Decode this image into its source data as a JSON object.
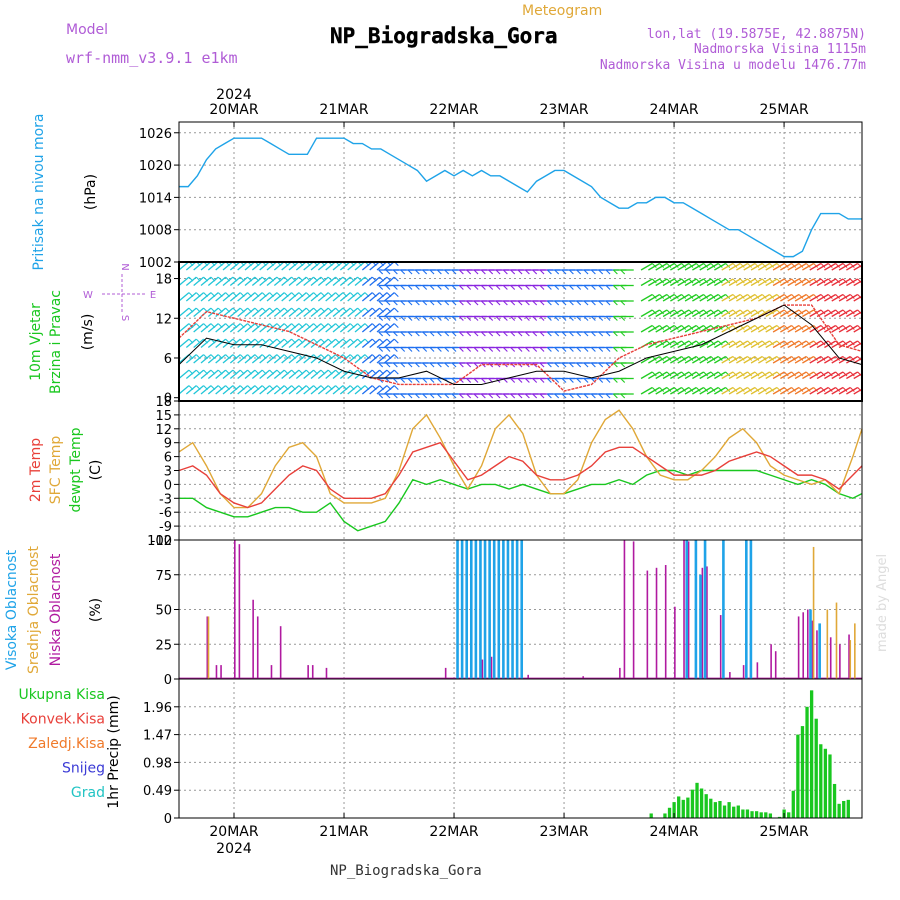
{
  "header": {
    "model_label": "Model",
    "model_name": "wrf-nmm_v3.9.1 e1km",
    "meteogram_label": "Meteogram",
    "station": "NP_Biogradska_Gora",
    "lonlat": "lon,lat (19.5875E, 42.8875N)",
    "elevation": "Nadmorska Visina 1115m",
    "model_elevation": "Nadmorska Visina u modelu 1476.77m",
    "footer_station": "NP_Biogradska_Gora",
    "credit": "made by Angel"
  },
  "colors": {
    "pressure": "#1fa3e8",
    "t2m": "#e8403a",
    "sfc": "#e0a838",
    "dewpt": "#19c71f",
    "high_cloud": "#1fa3e8",
    "mid_cloud": "#e0a838",
    "low_cloud": "#b01aa0",
    "total_precip": "#19c71f",
    "convective": "#e8403a",
    "freezing": "#f07a2a",
    "snow": "#3b3bd6",
    "graupel": "#22c4c4"
  },
  "chart_data": {
    "type": "meteogram",
    "time_axis": {
      "year": "2024",
      "day_labels": [
        "20MAR",
        "21MAR",
        "22MAR",
        "23MAR",
        "24MAR",
        "25MAR"
      ],
      "day_noon_hours": [
        12,
        36,
        60,
        84,
        108,
        132
      ],
      "range_hours": [
        0,
        149
      ]
    },
    "panels": [
      {
        "id": "pressure",
        "type": "line",
        "ylabel_name": "Pritisak na nivou mora",
        "ylabel_unit": "(hPa)",
        "ylim": [
          1002,
          1028
        ],
        "yticks": [
          1002,
          1008,
          1014,
          1020,
          1026
        ],
        "x": [
          0,
          2,
          4,
          6,
          8,
          10,
          12,
          14,
          16,
          18,
          20,
          22,
          24,
          26,
          28,
          30,
          32,
          34,
          36,
          38,
          40,
          42,
          44,
          46,
          48,
          50,
          52,
          54,
          56,
          58,
          60,
          62,
          64,
          66,
          68,
          70,
          72,
          74,
          76,
          78,
          80,
          82,
          84,
          86,
          88,
          90,
          92,
          94,
          96,
          98,
          100,
          102,
          104,
          106,
          108,
          110,
          112,
          114,
          116,
          118,
          120,
          122,
          124,
          126,
          128,
          130,
          132,
          134,
          136,
          138,
          140,
          142,
          144,
          146,
          148,
          149
        ],
        "y": [
          1016,
          1016,
          1018,
          1021,
          1023,
          1024,
          1025,
          1025,
          1025,
          1025,
          1024,
          1023,
          1022,
          1022,
          1022,
          1025,
          1025,
          1025,
          1025,
          1024,
          1024,
          1023,
          1023,
          1022,
          1021,
          1020,
          1019,
          1017,
          1018,
          1019,
          1018,
          1019,
          1018,
          1019,
          1018,
          1018,
          1017,
          1016,
          1015,
          1017,
          1018,
          1019,
          1019,
          1018,
          1017,
          1016,
          1014,
          1013,
          1012,
          1012,
          1013,
          1013,
          1014,
          1014,
          1013,
          1013,
          1012,
          1011,
          1010,
          1009,
          1008,
          1008,
          1007,
          1006,
          1005,
          1004,
          1003,
          1003,
          1004,
          1008,
          1011,
          1011,
          1011,
          1010,
          1010,
          1010
        ]
      },
      {
        "id": "wind",
        "type": "line",
        "ylabel_name": "10m Vjetar",
        "ylabel_name2": "Brzina i Pravac",
        "ylabel_unit": "(m/s)",
        "direction_legend": [
          "N",
          "E",
          "S",
          "W"
        ],
        "ylim": [
          -0.5,
          20.5
        ],
        "yticks": [
          0,
          6,
          12,
          18
        ],
        "x": [
          0,
          6,
          12,
          18,
          24,
          30,
          36,
          42,
          48,
          54,
          60,
          66,
          72,
          78,
          84,
          90,
          96,
          102,
          108,
          114,
          120,
          126,
          132,
          138,
          144,
          149
        ],
        "speed_black": [
          5,
          9,
          8,
          8,
          7,
          6,
          4,
          3,
          3,
          4,
          2,
          2,
          3,
          4,
          4,
          3,
          4,
          6,
          7,
          8,
          10,
          12,
          14,
          11,
          6,
          5
        ],
        "gust_red": [
          9,
          13,
          12,
          11,
          10,
          8,
          6,
          3,
          2,
          2,
          2,
          5,
          5,
          5,
          1,
          2,
          6,
          8,
          9,
          10,
          11,
          12,
          14,
          14,
          8,
          7
        ]
      },
      {
        "id": "temperature",
        "type": "line",
        "ylabel_name": "2m Temp",
        "ylabel_name2": "SFC Temp",
        "ylabel_name3": "dewpt Temp",
        "ylabel_unit": "(C)",
        "ylim": [
          -12,
          18
        ],
        "yticks": [
          -12,
          -9,
          -6,
          -3,
          0,
          3,
          6,
          9,
          12,
          15,
          18
        ],
        "x": [
          0,
          3,
          6,
          9,
          12,
          15,
          18,
          21,
          24,
          27,
          30,
          33,
          36,
          39,
          42,
          45,
          48,
          51,
          54,
          57,
          60,
          63,
          66,
          69,
          72,
          75,
          78,
          81,
          84,
          87,
          90,
          93,
          96,
          99,
          102,
          105,
          108,
          111,
          114,
          117,
          120,
          123,
          126,
          129,
          132,
          135,
          138,
          141,
          144,
          147,
          149
        ],
        "t2m": [
          3,
          4,
          2,
          -2,
          -4,
          -5,
          -4,
          -1,
          2,
          4,
          3,
          -1,
          -3,
          -3,
          -3,
          -2,
          2,
          7,
          8,
          9,
          5,
          1,
          2,
          4,
          6,
          5,
          2,
          1,
          1,
          2,
          4,
          7,
          8,
          8,
          6,
          4,
          2,
          2,
          2,
          3,
          5,
          6,
          7,
          6,
          4,
          2,
          2,
          1,
          -1,
          2,
          4
        ],
        "sfc": [
          7,
          9,
          4,
          -2,
          -5,
          -5,
          -2,
          4,
          8,
          9,
          6,
          -2,
          -4,
          -4,
          -4,
          -3,
          3,
          12,
          15,
          10,
          4,
          -1,
          4,
          12,
          15,
          11,
          2,
          -2,
          -2,
          1,
          9,
          14,
          16,
          12,
          6,
          2,
          1,
          1,
          3,
          6,
          10,
          12,
          9,
          4,
          2,
          1,
          0,
          1,
          -2,
          6,
          12
        ],
        "dewpt": [
          -3,
          -3,
          -5,
          -6,
          -7,
          -7,
          -6,
          -5,
          -5,
          -6,
          -6,
          -4,
          -8,
          -10,
          -9,
          -8,
          -4,
          1,
          0,
          1,
          0,
          -1,
          0,
          0,
          -1,
          0,
          -1,
          -2,
          -2,
          -1,
          0,
          0,
          1,
          0,
          2,
          3,
          3,
          2,
          3,
          3,
          3,
          3,
          3,
          2,
          1,
          0,
          1,
          0,
          -2,
          -3,
          -2
        ]
      },
      {
        "id": "cloud",
        "type": "bar",
        "ylabel_name": "Visoka Oblacnost",
        "ylabel_name2": "Srednja Oblacnost",
        "ylabel_name3": "Niska Oblacnost",
        "ylabel_unit": "(%)",
        "ylim": [
          0,
          100
        ],
        "yticks": [
          0,
          25,
          50,
          75,
          100
        ],
        "low": [
          [
            6,
            45
          ],
          [
            8,
            10
          ],
          [
            9,
            10
          ],
          [
            12,
            100
          ],
          [
            13,
            97
          ],
          [
            16,
            57
          ],
          [
            17,
            45
          ],
          [
            20,
            10
          ],
          [
            22,
            38
          ],
          [
            28,
            10
          ],
          [
            29,
            10
          ],
          [
            32,
            8
          ],
          [
            58,
            8
          ],
          [
            66,
            14
          ],
          [
            68,
            16
          ],
          [
            76,
            3
          ],
          [
            88,
            2
          ],
          [
            96,
            8
          ],
          [
            97,
            100
          ],
          [
            99,
            99
          ],
          [
            102,
            78
          ],
          [
            104,
            80
          ],
          [
            106,
            82
          ],
          [
            108,
            52
          ],
          [
            110,
            100
          ],
          [
            111,
            99
          ],
          [
            114,
            80
          ],
          [
            115,
            81
          ],
          [
            118,
            46
          ],
          [
            120,
            5
          ],
          [
            123,
            10
          ],
          [
            126,
            12
          ],
          [
            129,
            25
          ],
          [
            130,
            20
          ],
          [
            135,
            45
          ],
          [
            136,
            48
          ],
          [
            137,
            50
          ],
          [
            138,
            42
          ],
          [
            139,
            35
          ],
          [
            142,
            30
          ],
          [
            144,
            25
          ],
          [
            146,
            32
          ]
        ],
        "mid": [
          [
            6,
            45
          ],
          [
            138,
            95
          ],
          [
            141,
            50
          ],
          [
            143,
            55
          ],
          [
            146,
            28
          ],
          [
            147,
            40
          ]
        ],
        "high": [
          [
            60,
            100
          ],
          [
            61,
            100
          ],
          [
            62,
            100
          ],
          [
            63,
            100
          ],
          [
            64,
            100
          ],
          [
            65,
            100
          ],
          [
            66,
            100
          ],
          [
            67,
            100
          ],
          [
            68,
            100
          ],
          [
            69,
            100
          ],
          [
            70,
            100
          ],
          [
            71,
            100
          ],
          [
            72,
            100
          ],
          [
            73,
            100
          ],
          [
            74,
            100
          ],
          [
            110,
            100
          ],
          [
            112,
            100
          ],
          [
            113,
            75
          ],
          [
            114,
            100
          ],
          [
            118,
            100
          ],
          [
            123,
            100
          ],
          [
            124,
            100
          ],
          [
            137,
            50
          ],
          [
            139,
            40
          ]
        ]
      },
      {
        "id": "precip",
        "type": "bar",
        "ylabel_name": "1hr Precip",
        "ylabel_unit": "(mm)",
        "legend": [
          "Ukupna Kisa",
          "Konvek.Kisa",
          "Zaledj.Kisa",
          "Snijeg",
          "Grad"
        ],
        "ylim": [
          0,
          2.45
        ],
        "yticks": [
          0,
          0.49,
          0.98,
          1.47,
          1.96
        ],
        "total": [
          [
            103,
            0.08
          ],
          [
            106,
            0.08
          ],
          [
            107,
            0.18
          ],
          [
            108,
            0.28
          ],
          [
            109,
            0.38
          ],
          [
            110,
            0.32
          ],
          [
            111,
            0.36
          ],
          [
            112,
            0.5
          ],
          [
            113,
            0.62
          ],
          [
            114,
            0.52
          ],
          [
            115,
            0.42
          ],
          [
            116,
            0.34
          ],
          [
            117,
            0.28
          ],
          [
            118,
            0.3
          ],
          [
            119,
            0.22
          ],
          [
            120,
            0.28
          ],
          [
            121,
            0.2
          ],
          [
            122,
            0.22
          ],
          [
            123,
            0.15
          ],
          [
            124,
            0.15
          ],
          [
            125,
            0.12
          ],
          [
            126,
            0.12
          ],
          [
            127,
            0.1
          ],
          [
            128,
            0.1
          ],
          [
            129,
            0.08
          ],
          [
            131,
            0.02
          ],
          [
            132,
            0.15
          ],
          [
            133,
            0.1
          ],
          [
            134,
            0.48
          ],
          [
            135,
            1.47
          ],
          [
            136,
            1.62
          ],
          [
            137,
            1.96
          ],
          [
            138,
            2.25
          ],
          [
            139,
            1.75
          ],
          [
            140,
            1.3
          ],
          [
            141,
            1.22
          ],
          [
            142,
            1.12
          ],
          [
            143,
            0.6
          ],
          [
            144,
            0.25
          ],
          [
            145,
            0.3
          ],
          [
            146,
            0.32
          ]
        ]
      }
    ]
  }
}
